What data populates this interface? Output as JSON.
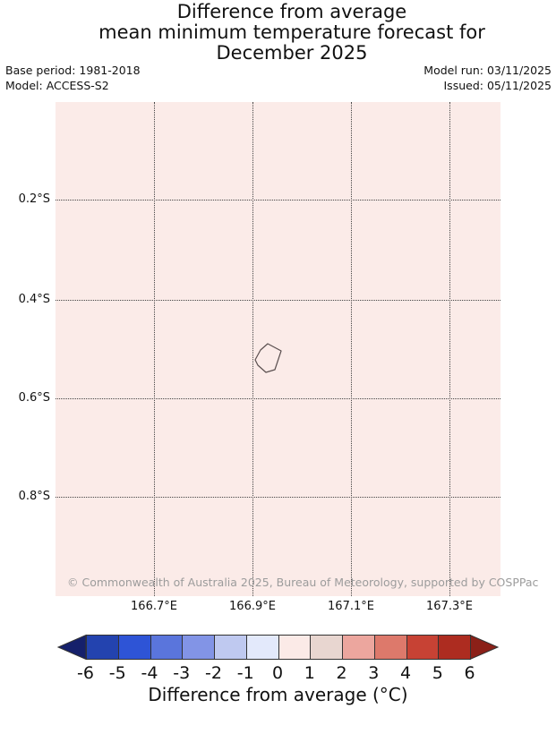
{
  "header": {
    "title_lines": [
      "Difference from average",
      "mean minimum temperature forecast for",
      "December 2025"
    ],
    "meta_left": [
      "Base period: 1981-2018",
      "Model: ACCESS-S2"
    ],
    "meta_right": [
      "Model run: 03/11/2025",
      "Issued: 05/11/2025"
    ]
  },
  "map": {
    "background_color": "#fbebe8",
    "gridline_color": "#444444",
    "island_outline_color": "#5a4f4f",
    "y_tick_labels": [
      "0.2°S",
      "0.4°S",
      "0.6°S",
      "0.8°S"
    ],
    "x_tick_labels": [
      "166.7°E",
      "166.9°E",
      "167.1°E",
      "167.3°E"
    ],
    "copyright": "© Commonwealth of Australia 2025, Bureau of Meteorology, supported by COSPPac",
    "copyright_color": "#9c9c9c"
  },
  "colorbar": {
    "caption": "Difference from average (°C)",
    "tick_labels": [
      "-6",
      "-5",
      "-4",
      "-3",
      "-2",
      "-1",
      "0",
      "1",
      "2",
      "3",
      "4",
      "5",
      "6"
    ],
    "cell_colors": [
      "#2343af",
      "#2e54d6",
      "#5a75dc",
      "#8294e6",
      "#bfc9f0",
      "#e3e9fb",
      "#fbeae7",
      "#e8d6d0",
      "#eca69e",
      "#dd796b",
      "#c74234",
      "#ad2c20"
    ],
    "left_arrow_color": "#15206b",
    "right_arrow_color": "#8b2018",
    "border_color": "#333333"
  },
  "chart_data": {
    "type": "heatmap",
    "title": "Difference from average mean minimum temperature forecast for December 2025",
    "base_period": "1981-2018",
    "model": "ACCESS-S2",
    "model_run": "03/11/2025",
    "issued": "05/11/2025",
    "x_ticks_deg_E": [
      166.7,
      166.9,
      167.1,
      167.3
    ],
    "y_ticks_deg_S": [
      0.2,
      0.4,
      0.6,
      0.8
    ],
    "xlim_deg_E": [
      166.5,
      167.4
    ],
    "ylim_deg_S": [
      0.0,
      1.0
    ],
    "grid": true,
    "field": "uniform anomaly over whole map falling in the 0 to +1 °C bin (pale pink)",
    "units": "°C",
    "colorbar": {
      "label": "Difference from average (°C)",
      "ticks": [
        -6,
        -5,
        -4,
        -3,
        -2,
        -1,
        0,
        1,
        2,
        3,
        4,
        5,
        6
      ],
      "bin_width": 1,
      "extend": "both",
      "legend_position": "bottom"
    },
    "features": [
      "small island coastline outline near 166.93°E, 0.52°S"
    ]
  }
}
